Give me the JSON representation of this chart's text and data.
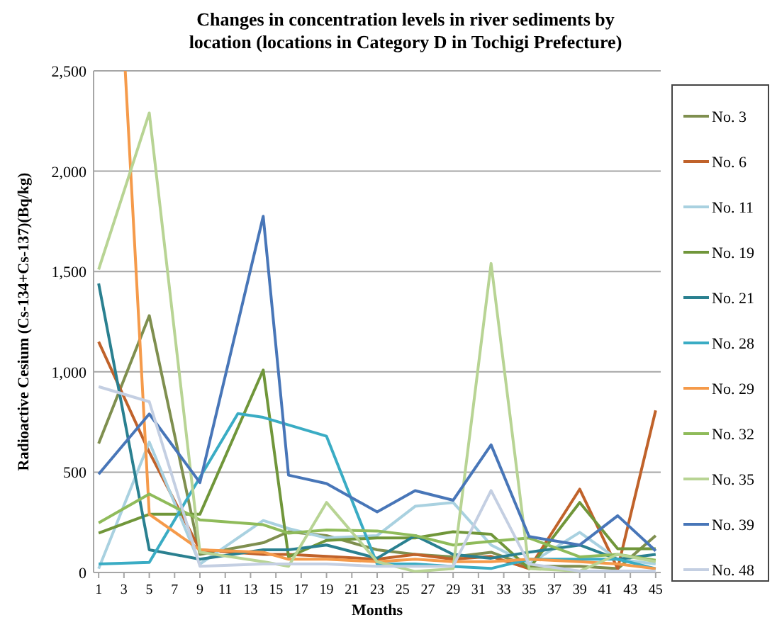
{
  "chart_data": {
    "type": "line",
    "title": "Changes in concentration levels in river sediments by location (locations in Category D in Tochigi Prefecture)",
    "xlabel": "Months",
    "ylabel": "Radioactive Cesium (Cs-134+Cs-137)(Bq/kg)",
    "xlim": [
      0.6,
      45.4
    ],
    "xticks": [
      1,
      3,
      5,
      7,
      9,
      11,
      13,
      15,
      17,
      19,
      21,
      23,
      25,
      27,
      29,
      31,
      33,
      35,
      37,
      39,
      41,
      43,
      45
    ],
    "ylim": [
      0,
      2500
    ],
    "yticks": [
      {
        "value": 0,
        "label": "0"
      },
      {
        "value": 500,
        "label": "500"
      },
      {
        "value": 1000,
        "label": "1,000"
      },
      {
        "value": 1500,
        "label": "1,500"
      },
      {
        "value": 2000,
        "label": "2,000"
      },
      {
        "value": 2500,
        "label": "2,500"
      }
    ],
    "grid": "y",
    "legend": "right",
    "marker": "none",
    "line_style": "solid",
    "x": [
      1,
      5,
      9,
      14,
      16,
      19,
      23,
      26,
      29,
      32,
      35,
      39,
      42,
      45
    ],
    "series": [
      {
        "name": "No. 3",
        "color": "#7f8f4f",
        "values": [
          643,
          1280,
          90,
          148,
          203,
          184,
          113,
          90,
          78,
          101,
          31,
          31,
          19,
          184
        ]
      },
      {
        "name": "No. 6",
        "color": "#c0622a",
        "values": [
          1150,
          600,
          113,
          90,
          90,
          80,
          66,
          90,
          66,
          80,
          19,
          415,
          19,
          808
        ]
      },
      {
        "name": "No. 11",
        "color": "#a9d1e0",
        "values": [
          19,
          650,
          42,
          259,
          219,
          172,
          184,
          330,
          349,
          137,
          42,
          200,
          66,
          42
        ]
      },
      {
        "name": "No. 19",
        "color": "#70963a",
        "values": [
          196,
          290,
          290,
          1009,
          78,
          160,
          172,
          172,
          203,
          191,
          19,
          349,
          118,
          118
        ]
      },
      {
        "name": "No. 21",
        "color": "#2a8090",
        "values": [
          1440,
          113,
          66,
          113,
          113,
          137,
          71,
          184,
          90,
          71,
          101,
          137,
          66,
          90
        ]
      },
      {
        "name": "No. 28",
        "color": "#3aacc4",
        "x": [
          1,
          5,
          12,
          14,
          19,
          23,
          26,
          29,
          32,
          35,
          39,
          42,
          45
        ],
        "values": [
          42,
          50,
          792,
          773,
          679,
          42,
          42,
          30,
          20,
          66,
          66,
          66,
          19
        ]
      },
      {
        "name": "No. 29",
        "color": "#f59a4a",
        "x": [
          3.1,
          5,
          9,
          14,
          16,
          19,
          23,
          26,
          29,
          32,
          35,
          39,
          42,
          45
        ],
        "values": [
          2500,
          290,
          113,
          101,
          66,
          66,
          54,
          66,
          54,
          54,
          66,
          54,
          42,
          19
        ]
      },
      {
        "name": "No. 32",
        "color": "#8fbb5a",
        "values": [
          247,
          391,
          262,
          238,
          196,
          212,
          207,
          184,
          137,
          155,
          172,
          78,
          90,
          61
        ]
      },
      {
        "name": "No. 35",
        "color": "#b8d494",
        "values": [
          1510,
          2290,
          101,
          54,
          31,
          349,
          54,
          5,
          19,
          1540,
          19,
          7,
          90,
          54
        ]
      },
      {
        "name": "No. 39",
        "color": "#4876b8",
        "values": [
          490,
          790,
          448,
          1775,
          485,
          443,
          302,
          408,
          360,
          636,
          179,
          137,
          283,
          108
        ]
      },
      {
        "name": "No. 48",
        "color": "#c4cfe2",
        "values": [
          926,
          851,
          31,
          42,
          42,
          42,
          31,
          31,
          31,
          408,
          42,
          7,
          7,
          7
        ]
      }
    ]
  }
}
